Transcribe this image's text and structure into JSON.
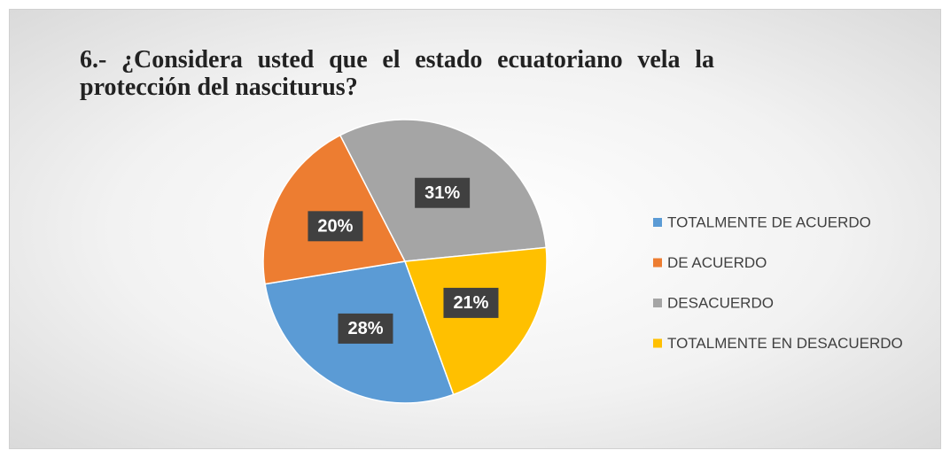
{
  "chart_data": {
    "type": "pie",
    "title": "6.- ¿Considera usted que el estado ecuatoriano vela la protección del nasciturus?",
    "categories": [
      "TOTALMENTE DE ACUERDO",
      "DE ACUERDO",
      "DESACUERDO",
      "TOTALMENTE EN DESACUERDO"
    ],
    "values": [
      28,
      20,
      31,
      21
    ],
    "value_labels": [
      "28%",
      "20%",
      "31%",
      "21%"
    ],
    "colors": [
      "#5b9bd5",
      "#ed7d31",
      "#a5a5a5",
      "#ffc000"
    ],
    "start_angle": 160,
    "legend": "right"
  }
}
